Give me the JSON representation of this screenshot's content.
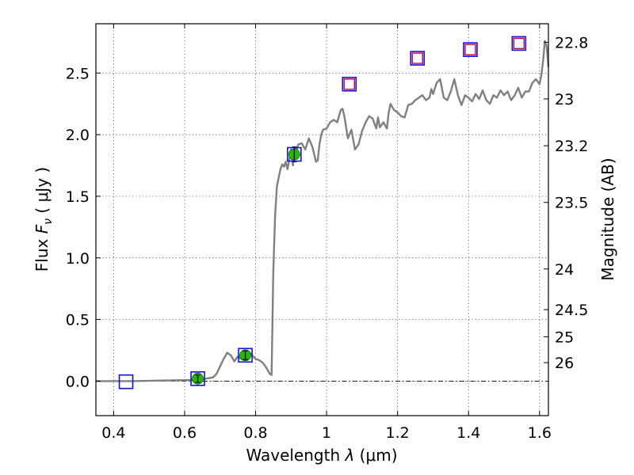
{
  "chart_data": {
    "type": "scatter",
    "xlabel_prefix": "Wavelength  ",
    "xlabel_symbol": "λ",
    "xlabel_unit": " (μm)",
    "ylabel_prefix": "Flux  ",
    "ylabel_symbol": "F",
    "ylabel_subscript": "ν",
    "ylabel_unit": "  ( μJy )",
    "y2label": "Magnitude (AB)",
    "xlim": [
      0.35,
      1.625
    ],
    "ylim": [
      -0.28,
      2.9
    ],
    "grid": true,
    "x_ticks": [
      {
        "value": 0.4,
        "label": "0.4"
      },
      {
        "value": 0.6,
        "label": "0.6"
      },
      {
        "value": 0.8,
        "label": "0.8"
      },
      {
        "value": 1.0,
        "label": "1"
      },
      {
        "value": 1.2,
        "label": "1.2"
      },
      {
        "value": 1.4,
        "label": "1.4"
      },
      {
        "value": 1.6,
        "label": "1.6"
      }
    ],
    "y_ticks": [
      {
        "value": 0.0,
        "label": "0.0"
      },
      {
        "value": 0.5,
        "label": "0.5"
      },
      {
        "value": 1.0,
        "label": "1.0"
      },
      {
        "value": 1.5,
        "label": "1.5"
      },
      {
        "value": 2.0,
        "label": "2.0"
      },
      {
        "value": 2.5,
        "label": "2.5"
      }
    ],
    "y2_ticks": [
      {
        "flux": 2.75,
        "label": "22.8"
      },
      {
        "flux": 2.29,
        "label": "23"
      },
      {
        "flux": 1.91,
        "label": "23.2"
      },
      {
        "flux": 1.45,
        "label": "23.5"
      },
      {
        "flux": 0.91,
        "label": "24"
      },
      {
        "flux": 0.58,
        "label": "24.5"
      },
      {
        "flux": 0.36,
        "label": "25"
      },
      {
        "flux": 0.15,
        "label": "26"
      }
    ],
    "zero_line": 0.0,
    "model_spectrum": {
      "color": "#808080",
      "x": [
        0.35,
        0.45,
        0.55,
        0.62,
        0.66,
        0.68,
        0.69,
        0.7,
        0.71,
        0.72,
        0.73,
        0.74,
        0.75,
        0.76,
        0.77,
        0.78,
        0.79,
        0.8,
        0.81,
        0.82,
        0.83,
        0.84,
        0.845,
        0.85,
        0.855,
        0.86,
        0.865,
        0.87,
        0.875,
        0.88,
        0.885,
        0.89,
        0.895,
        0.9,
        0.905,
        0.91,
        0.915,
        0.92,
        0.93,
        0.94,
        0.95,
        0.96,
        0.97,
        0.975,
        0.98,
        0.985,
        0.99,
        1.0,
        1.01,
        1.02,
        1.03,
        1.04,
        1.045,
        1.05,
        1.06,
        1.07,
        1.08,
        1.09,
        1.1,
        1.11,
        1.12,
        1.13,
        1.14,
        1.145,
        1.15,
        1.16,
        1.17,
        1.175,
        1.18,
        1.19,
        1.2,
        1.21,
        1.22,
        1.23,
        1.24,
        1.25,
        1.26,
        1.27,
        1.28,
        1.29,
        1.295,
        1.3,
        1.31,
        1.32,
        1.33,
        1.34,
        1.35,
        1.36,
        1.37,
        1.38,
        1.39,
        1.4,
        1.41,
        1.42,
        1.43,
        1.44,
        1.45,
        1.46,
        1.47,
        1.48,
        1.49,
        1.5,
        1.51,
        1.52,
        1.53,
        1.54,
        1.55,
        1.56,
        1.57,
        1.58,
        1.59,
        1.6,
        1.605,
        1.61,
        1.615,
        1.62,
        1.625
      ],
      "y": [
        0.0,
        0.0,
        0.005,
        0.01,
        0.02,
        0.03,
        0.06,
        0.12,
        0.18,
        0.23,
        0.21,
        0.16,
        0.2,
        0.18,
        0.23,
        0.24,
        0.21,
        0.18,
        0.17,
        0.15,
        0.11,
        0.06,
        0.05,
        0.9,
        1.35,
        1.58,
        1.65,
        1.72,
        1.76,
        1.74,
        1.78,
        1.72,
        1.8,
        1.88,
        1.75,
        1.9,
        1.87,
        1.92,
        1.93,
        1.88,
        1.97,
        1.9,
        1.78,
        1.79,
        1.92,
        2.0,
        2.04,
        2.05,
        2.1,
        2.12,
        2.1,
        2.2,
        2.21,
        2.15,
        1.97,
        2.04,
        1.88,
        1.92,
        2.03,
        2.1,
        2.15,
        2.13,
        2.05,
        2.14,
        2.06,
        2.1,
        2.05,
        2.18,
        2.25,
        2.2,
        2.18,
        2.15,
        2.14,
        2.24,
        2.25,
        2.28,
        2.3,
        2.32,
        2.28,
        2.3,
        2.37,
        2.33,
        2.42,
        2.45,
        2.3,
        2.28,
        2.35,
        2.45,
        2.32,
        2.24,
        2.32,
        2.3,
        2.27,
        2.33,
        2.29,
        2.36,
        2.28,
        2.25,
        2.32,
        2.3,
        2.36,
        2.32,
        2.35,
        2.28,
        2.32,
        2.38,
        2.3,
        2.35,
        2.35,
        2.42,
        2.45,
        2.41,
        2.48,
        2.6,
        2.76,
        2.72,
        2.55
      ]
    },
    "photometry_points": {
      "fill_color": "#22bb00",
      "x": [
        0.637,
        0.771,
        0.909
      ],
      "y": [
        0.02,
        0.21,
        1.84
      ],
      "yerr": [
        0.03,
        0.035,
        0.06
      ]
    },
    "observed_boxes": {
      "color": "#1010ee",
      "x": [
        0.435,
        0.637,
        0.771,
        0.909,
        1.064,
        1.256,
        1.405,
        1.542
      ],
      "y": [
        -0.005,
        0.02,
        0.21,
        1.84,
        2.41,
        2.62,
        2.69,
        2.74
      ]
    },
    "model_boxes": {
      "color": "#cc0033",
      "x": [
        1.064,
        1.256,
        1.405,
        1.542
      ],
      "y": [
        2.41,
        2.62,
        2.69,
        2.74
      ]
    }
  }
}
